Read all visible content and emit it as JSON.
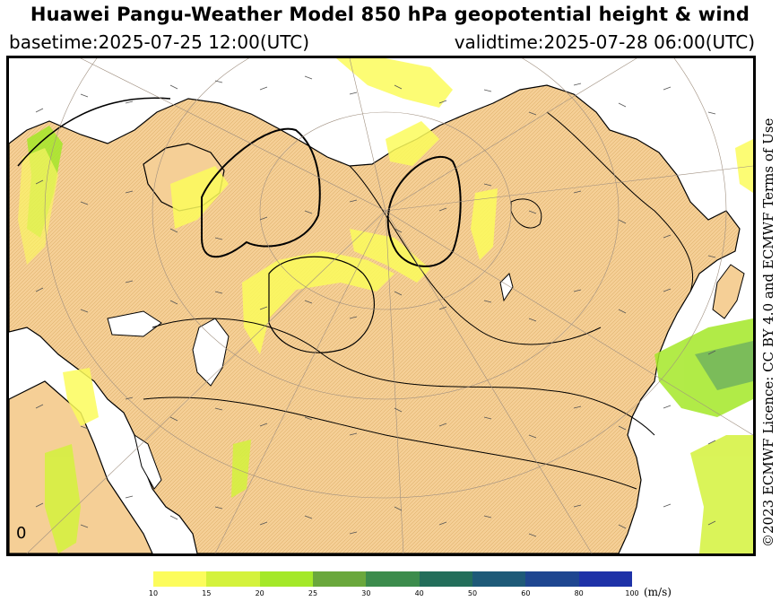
{
  "header": {
    "title": "Huawei Pangu-Weather Model 850 hPa geopotential height & wind",
    "basetime": "basetime:2025-07-25 12:00(UTC)",
    "validtime": "validtime:2025-07-28 06:00(UTC)"
  },
  "licence": "©2023 ECMWF Licence: CC BY 4.0 and ECMWF Terms of Use",
  "map": {
    "land_color": "#f5cf96",
    "ocean_color": "#ffffff",
    "corner_label": "0"
  },
  "colorbar": {
    "unit": "(m/s)",
    "ticks": [
      "10",
      "15",
      "20",
      "25",
      "30",
      "40",
      "50",
      "60",
      "80",
      "100"
    ],
    "colors": [
      "#fcfc5c",
      "#d4f23c",
      "#a4e828",
      "#6aa83c",
      "#3c8c4c",
      "#236e5a",
      "#1e5a78",
      "#1e4690",
      "#1e32a8"
    ]
  }
}
